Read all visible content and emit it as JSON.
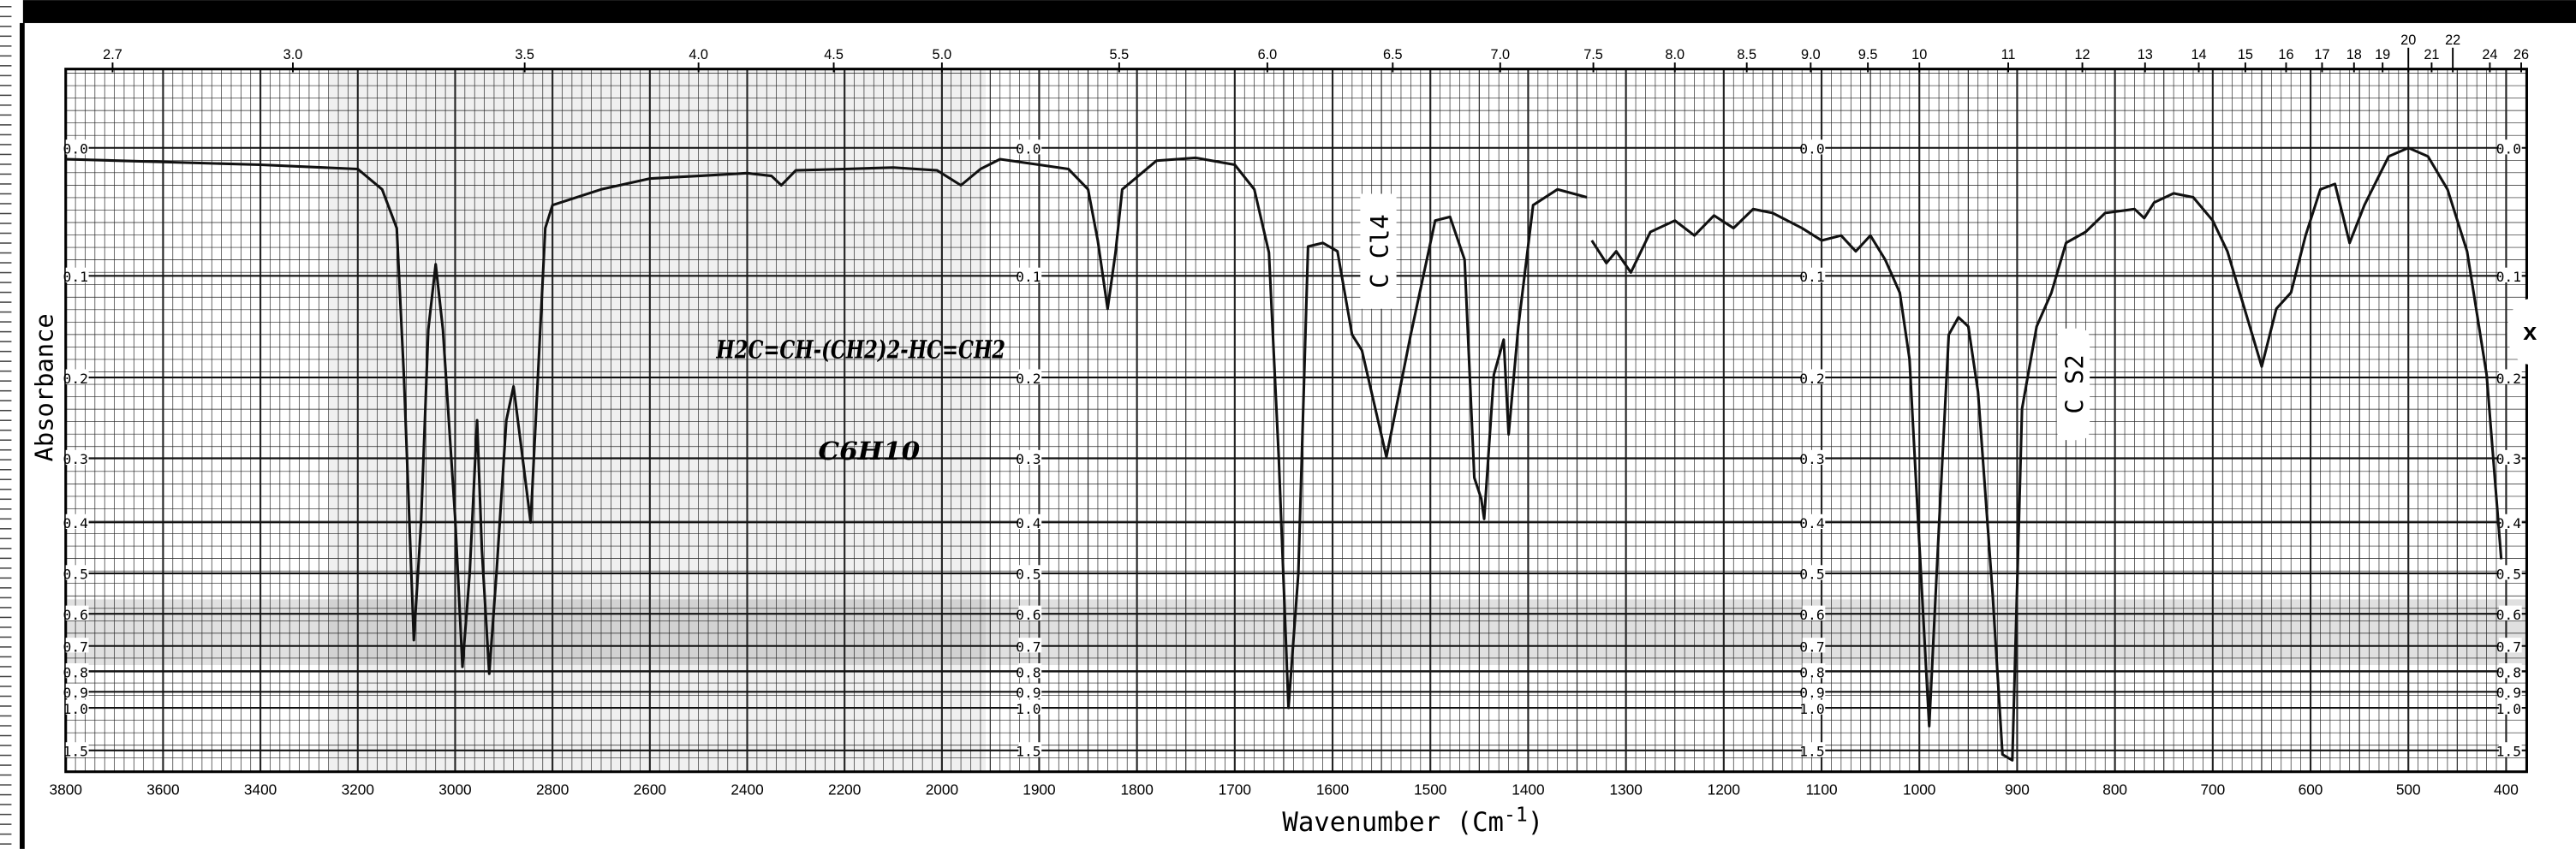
{
  "chart_data": {
    "type": "line",
    "xlabel": "Wavenumber (Cm-1)",
    "xlabel_main": "Wavenumber (Cm",
    "xlabel_sup": "-1",
    "xlabel_close": ")",
    "ylabel": "Absorbance",
    "xlim": [
      3800,
      400
    ],
    "x_scale": "wavenumber, 2x expanded below 2000",
    "y_scale": "absorbance (linear in transmittance)",
    "ylim": [
      0.0,
      1.5
    ],
    "grid": true,
    "x_ticks_bottom": [
      3800,
      3600,
      3400,
      3200,
      3000,
      2800,
      2600,
      2400,
      2200,
      2000,
      1900,
      1800,
      1700,
      1600,
      1500,
      1400,
      1300,
      1200,
      1100,
      1000,
      900,
      800,
      700,
      600,
      500,
      400
    ],
    "x_ticks_top_microns": [
      "2.7",
      "3.0",
      "3.5",
      "4.0",
      "4.5",
      "5.0",
      "5.5",
      "6.0",
      "6.5",
      "7.0",
      "7.5",
      "8.0",
      "8.5",
      "9.0",
      "9.5",
      "10",
      "11",
      "12",
      "13",
      "14",
      "15",
      "16",
      "17",
      "18",
      "19",
      "20",
      "21",
      "22",
      "24",
      "26"
    ],
    "y_ticks": [
      "0.0",
      "0.1",
      "0.2",
      "0.3",
      "0.4",
      "0.5",
      "0.6",
      "0.7",
      "0.8",
      "0.9",
      "1.0",
      "1.5"
    ],
    "series": [
      {
        "segments": [
          [
            [
              3800,
              0.008
            ],
            [
              3600,
              0.01
            ],
            [
              3400,
              0.012
            ],
            [
              3200,
              0.015
            ],
            [
              3150,
              0.03
            ],
            [
              3120,
              0.06
            ],
            [
              3105,
              0.2
            ],
            [
              3085,
              0.68
            ],
            [
              3070,
              0.4
            ],
            [
              3055,
              0.15
            ],
            [
              3040,
              0.09
            ],
            [
              3025,
              0.15
            ],
            [
              3000,
              0.39
            ],
            [
              2985,
              0.78
            ],
            [
              2970,
              0.5
            ],
            [
              2955,
              0.25
            ],
            [
              2945,
              0.45
            ],
            [
              2930,
              0.81
            ],
            [
              2915,
              0.5
            ],
            [
              2895,
              0.25
            ],
            [
              2880,
              0.21
            ],
            [
              2865,
              0.28
            ],
            [
              2845,
              0.4
            ],
            [
              2830,
              0.2
            ],
            [
              2815,
              0.06
            ],
            [
              2800,
              0.042
            ],
            [
              2700,
              0.03
            ],
            [
              2600,
              0.022
            ],
            [
              2500,
              0.02
            ],
            [
              2400,
              0.018
            ],
            [
              2350,
              0.02
            ],
            [
              2330,
              0.027
            ],
            [
              2300,
              0.016
            ],
            [
              2200,
              0.015
            ],
            [
              2100,
              0.014
            ],
            [
              2010,
              0.016
            ],
            [
              1980,
              0.027
            ],
            [
              1960,
              0.015
            ],
            [
              1940,
              0.008
            ],
            [
              1900,
              0.012
            ],
            [
              1870,
              0.015
            ],
            [
              1850,
              0.03
            ],
            [
              1840,
              0.07
            ],
            [
              1830,
              0.13
            ],
            [
              1822,
              0.08
            ],
            [
              1815,
              0.03
            ],
            [
              1780,
              0.009
            ],
            [
              1740,
              0.007
            ],
            [
              1700,
              0.012
            ],
            [
              1680,
              0.03
            ],
            [
              1665,
              0.08
            ],
            [
              1655,
              0.3
            ],
            [
              1645,
              1.0
            ],
            [
              1635,
              0.5
            ],
            [
              1625,
              0.075
            ],
            [
              1610,
              0.072
            ],
            [
              1595,
              0.079
            ],
            [
              1580,
              0.155
            ],
            [
              1570,
              0.171
            ],
            [
              1545,
              0.298
            ],
            [
              1520,
              0.155
            ],
            [
              1495,
              0.054
            ],
            [
              1480,
              0.051
            ],
            [
              1465,
              0.086
            ],
            [
              1455,
              0.328
            ],
            [
              1448,
              0.36
            ],
            [
              1445,
              0.394
            ],
            [
              1435,
              0.197
            ],
            [
              1425,
              0.16
            ],
            [
              1420,
              0.268
            ],
            [
              1410,
              0.147
            ],
            [
              1395,
              0.042
            ],
            [
              1370,
              0.03
            ],
            [
              1340,
              0.036
            ]
          ],
          [
            [
              1335,
              0.07
            ],
            [
              1320,
              0.089
            ],
            [
              1310,
              0.079
            ],
            [
              1295,
              0.097
            ],
            [
              1275,
              0.063
            ],
            [
              1250,
              0.054
            ],
            [
              1230,
              0.066
            ],
            [
              1210,
              0.05
            ],
            [
              1190,
              0.06
            ],
            [
              1170,
              0.045
            ],
            [
              1150,
              0.048
            ],
            [
              1120,
              0.06
            ],
            [
              1100,
              0.07
            ],
            [
              1080,
              0.066
            ],
            [
              1065,
              0.079
            ],
            [
              1050,
              0.066
            ],
            [
              1035,
              0.086
            ],
            [
              1020,
              0.115
            ],
            [
              1010,
              0.18
            ],
            [
              1000,
              0.44
            ],
            [
              990,
              1.15
            ],
            [
              980,
              0.41
            ],
            [
              970,
              0.155
            ],
            [
              960,
              0.138
            ],
            [
              950,
              0.147
            ],
            [
              940,
              0.216
            ],
            [
              925,
              0.548
            ],
            [
              915,
              1.6
            ],
            [
              905,
              1.8
            ],
            [
              895,
              0.236
            ],
            [
              880,
              0.147
            ],
            [
              865,
              0.115
            ],
            [
              850,
              0.072
            ],
            [
              830,
              0.063
            ],
            [
              810,
              0.048
            ],
            [
              780,
              0.045
            ],
            [
              770,
              0.052
            ],
            [
              760,
              0.04
            ],
            [
              740,
              0.033
            ],
            [
              720,
              0.036
            ],
            [
              700,
              0.054
            ],
            [
              685,
              0.079
            ],
            [
              670,
              0.122
            ],
            [
              650,
              0.188
            ],
            [
              635,
              0.13
            ],
            [
              620,
              0.115
            ],
            [
              605,
              0.066
            ],
            [
              590,
              0.03
            ],
            [
              575,
              0.026
            ],
            [
              560,
              0.072
            ],
            [
              545,
              0.042
            ],
            [
              520,
              0.006
            ],
            [
              500,
              0.0
            ],
            [
              480,
              0.006
            ],
            [
              460,
              0.03
            ],
            [
              440,
              0.079
            ],
            [
              420,
              0.197
            ],
            [
              405,
              0.47
            ]
          ]
        ]
      }
    ],
    "annotations": {
      "solvent_1": "C Cl4",
      "solvent_2": "C S2",
      "marker": "x",
      "formula_handwritten": "H2C=CH-(CH2)2-HC=CH2",
      "molecular_formula_handwritten": "C6H10"
    },
    "colors": {
      "trace": "#111111",
      "grid": "#222222",
      "paper": "#ffffff",
      "band": "#000000"
    }
  }
}
